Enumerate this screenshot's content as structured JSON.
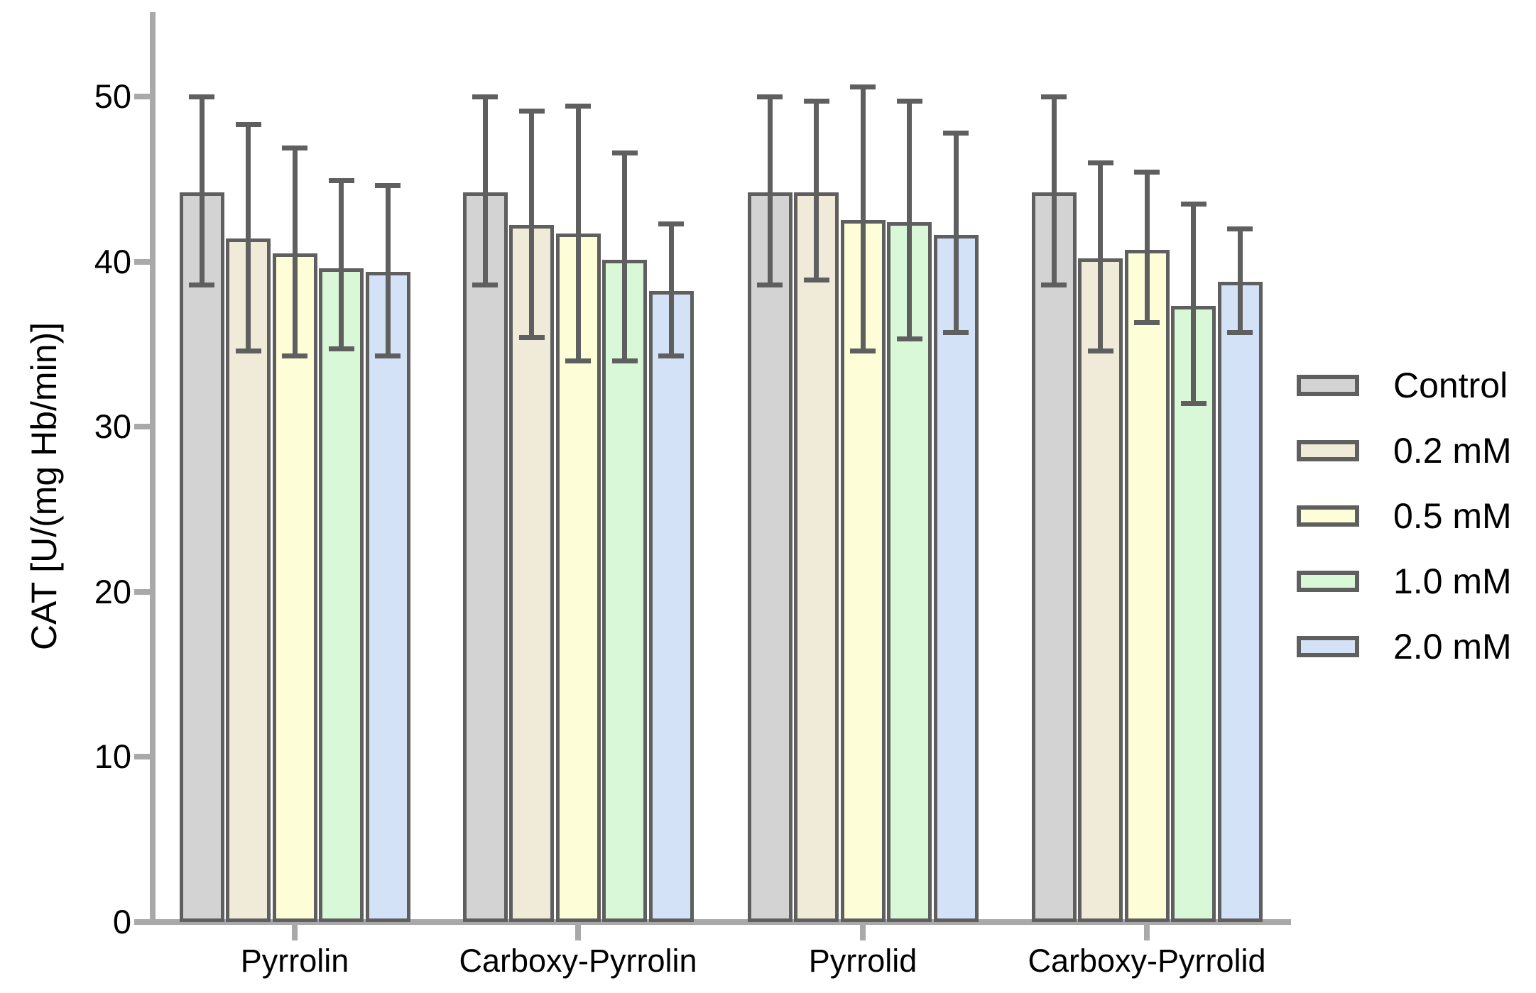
{
  "figure": {
    "y_axis_title": "CAT [U/(mg Hb/min)]",
    "axis_color": "#a9a9a9",
    "stroke_color": "#5f5f5f",
    "text_color": "#000000",
    "background_color": "#ffffff"
  },
  "legend": {
    "position": "right",
    "items": [
      {
        "label": "Control",
        "color": "#d3d3d3"
      },
      {
        "label": "0.2 mM",
        "color": "#f0ebd8"
      },
      {
        "label": "0.5 mM",
        "color": "#fdfdd8"
      },
      {
        "label": "1.0 mM",
        "color": "#d8f8d8"
      },
      {
        "label": "2.0 mM",
        "color": "#d4e2f7"
      }
    ]
  },
  "chart_data": {
    "type": "bar",
    "title": "",
    "xlabel": "",
    "ylabel": "CAT [U/(mg Hb/min)]",
    "categories": [
      "Pyrrolin",
      "Carboxy-Pyrrolin",
      "Pyrrolid",
      "Carboxy-Pyrrolid"
    ],
    "yticks": [
      0,
      10,
      20,
      30,
      40,
      50
    ],
    "ylim": [
      0,
      55.1
    ],
    "grid": false,
    "error_bars": true,
    "legend_position": "right",
    "series": [
      {
        "name": "Control",
        "color": "#d3d3d3",
        "values": [
          44.2,
          44.2,
          44.2,
          44.2
        ],
        "error_upper": [
          50.0,
          50.0,
          50.0,
          50.0
        ],
        "error_lower": [
          38.6,
          38.6,
          38.6,
          38.6
        ]
      },
      {
        "name": "0.2 mM",
        "color": "#f0ebd8",
        "values": [
          41.4,
          42.2,
          44.2,
          40.2
        ],
        "error_upper": [
          48.3,
          49.1,
          49.7,
          46.0
        ],
        "error_lower": [
          34.6,
          35.4,
          38.9,
          34.6
        ]
      },
      {
        "name": "0.5 mM",
        "color": "#fdfdd8",
        "values": [
          40.5,
          41.7,
          42.5,
          40.7
        ],
        "error_upper": [
          46.9,
          49.4,
          50.6,
          45.4
        ],
        "error_lower": [
          34.3,
          34.0,
          34.6,
          36.3
        ]
      },
      {
        "name": "1.0 mM",
        "color": "#d8f8d8",
        "values": [
          39.6,
          40.1,
          42.4,
          37.3
        ],
        "error_upper": [
          44.9,
          46.6,
          49.7,
          43.5
        ],
        "error_lower": [
          34.7,
          34.0,
          35.3,
          31.4
        ]
      },
      {
        "name": "2.0 mM",
        "color": "#d4e2f7",
        "values": [
          39.4,
          38.2,
          41.6,
          38.8
        ],
        "error_upper": [
          44.6,
          42.3,
          47.8,
          42.0
        ],
        "error_lower": [
          34.3,
          34.3,
          35.7,
          35.7
        ]
      }
    ]
  }
}
